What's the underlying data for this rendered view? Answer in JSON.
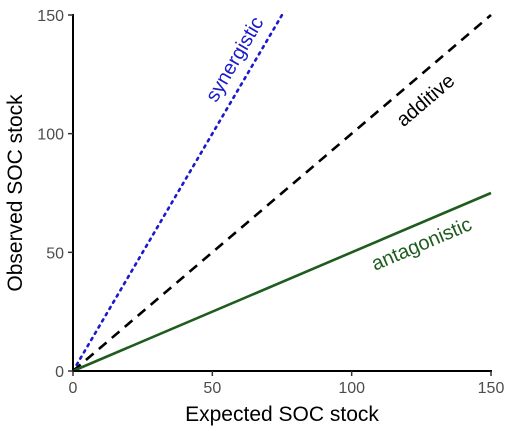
{
  "chart_data": {
    "type": "line",
    "title": "",
    "xlabel": "Expected SOC stock",
    "ylabel": "Observed SOC stock",
    "xlim": [
      0,
      150
    ],
    "ylim": [
      0,
      150
    ],
    "x_ticks": [
      0,
      50,
      100,
      150
    ],
    "y_ticks": [
      0,
      50,
      100,
      150
    ],
    "grid": false,
    "series": [
      {
        "name": "synergistic",
        "style": "dotted",
        "color": "#1a1acc",
        "x": [
          0,
          75
        ],
        "y": [
          0,
          150
        ]
      },
      {
        "name": "additive",
        "style": "dashed",
        "color": "#000000",
        "x": [
          0,
          150
        ],
        "y": [
          0,
          150
        ]
      },
      {
        "name": "antagonistic",
        "style": "solid",
        "color": "#1f5c1f",
        "x": [
          0,
          150
        ],
        "y": [
          0,
          75
        ]
      }
    ],
    "annotations": [
      {
        "series": "synergistic",
        "text": "synergistic",
        "x": 60,
        "y": 130
      },
      {
        "series": "additive",
        "text": "additive",
        "x": 128,
        "y": 112
      },
      {
        "series": "antagonistic",
        "text": "antagonistic",
        "x": 126,
        "y": 51
      }
    ]
  }
}
